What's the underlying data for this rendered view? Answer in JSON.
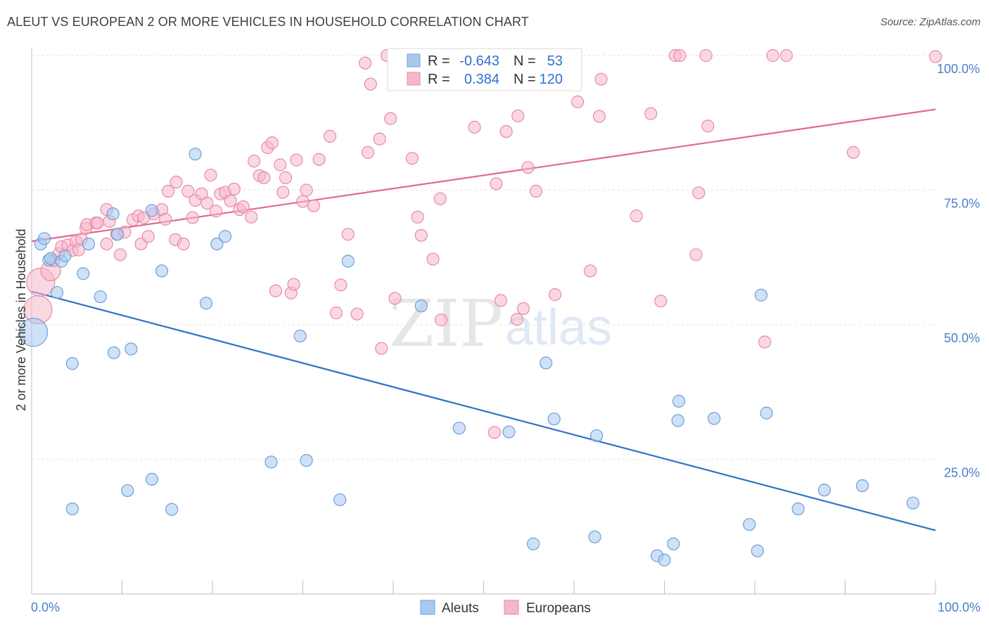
{
  "title": "ALEUT VS EUROPEAN 2 OR MORE VEHICLES IN HOUSEHOLD CORRELATION CHART",
  "source": "Source: ZipAtlas.com",
  "watermark": {
    "part1": "ZIP",
    "part2": "atlas"
  },
  "legend_stats": {
    "rows": [
      {
        "r_label": "R =",
        "r_value": "-0.643",
        "n_label": "N =",
        "n_value": "53"
      },
      {
        "r_label": "R =",
        "r_value": "0.384",
        "n_label": "N =",
        "n_value": "120"
      }
    ]
  },
  "bottom_legend": [
    "Aleuts",
    "Europeans"
  ],
  "colors": {
    "aleut_fill": "#a8c8f0",
    "aleut_stroke": "#6f9fd8",
    "aleut_line": "#2f72c8",
    "euro_fill": "#f5b8ca",
    "euro_stroke": "#e88aa6",
    "euro_line": "#e06a92",
    "tick_text": "#4a7fc8",
    "value_text": "#2f6fd0"
  },
  "chart_data": {
    "type": "scatter",
    "title": "ALEUT VS EUROPEAN 2 OR MORE VEHICLES IN HOUSEHOLD CORRELATION CHART",
    "xlabel": "",
    "ylabel": "2 or more Vehicles in Household",
    "xlim": [
      0,
      100
    ],
    "ylim": [
      0,
      100
    ],
    "x_tick_labels": [
      "0.0%",
      "100.0%"
    ],
    "y_tick_labels": [
      "25.0%",
      "50.0%",
      "75.0%",
      "100.0%"
    ],
    "y_ticks": [
      25,
      50,
      75,
      100
    ],
    "grid": "horizontal dashed",
    "legend_position": "top-center",
    "series": [
      {
        "name": "Aleuts",
        "r": -0.643,
        "n": 53,
        "trend": {
          "x": [
            0,
            100
          ],
          "y": [
            56.2,
            11.8
          ]
        },
        "points": [
          [
            0.2,
            48.6,
            3
          ],
          [
            1,
            65,
            1
          ],
          [
            1.4,
            66,
            1
          ],
          [
            1.9,
            62,
            1
          ],
          [
            2.1,
            62.3,
            1
          ],
          [
            2.8,
            56,
            1
          ],
          [
            3.3,
            61.8,
            1
          ],
          [
            3.7,
            62.8,
            1
          ],
          [
            4.5,
            42.8,
            1
          ],
          [
            4.5,
            15.8,
            1
          ],
          [
            5.7,
            59.5,
            1
          ],
          [
            6.3,
            65,
            1
          ],
          [
            7.6,
            55.2,
            1
          ],
          [
            9,
            70.6,
            1
          ],
          [
            9.1,
            44.8,
            1
          ],
          [
            9.5,
            66.8,
            1
          ],
          [
            10.6,
            19.2,
            1
          ],
          [
            11,
            45.5,
            1
          ],
          [
            13.3,
            71.2,
            1
          ],
          [
            13.3,
            21.3,
            1
          ],
          [
            14.4,
            60,
            1
          ],
          [
            15.5,
            15.7,
            1
          ],
          [
            18.1,
            81.7,
            1
          ],
          [
            19.3,
            54,
            1
          ],
          [
            20.5,
            65,
            1
          ],
          [
            21.4,
            66.4,
            1
          ],
          [
            26.5,
            24.5,
            1
          ],
          [
            29.7,
            47.9,
            1
          ],
          [
            30.4,
            24.8,
            1
          ],
          [
            34.1,
            17.5,
            1
          ],
          [
            35,
            61.8,
            1
          ],
          [
            43.1,
            53.5,
            1
          ],
          [
            47.3,
            30.8,
            1
          ],
          [
            52.8,
            30.1,
            1
          ],
          [
            55.5,
            9.3,
            1
          ],
          [
            56.9,
            42.9,
            1
          ],
          [
            57.8,
            32.5,
            1
          ],
          [
            62.3,
            10.6,
            1
          ],
          [
            62.5,
            29.4,
            1
          ],
          [
            69.2,
            7.1,
            1
          ],
          [
            70,
            6.3,
            1
          ],
          [
            71,
            9.3,
            1
          ],
          [
            71.5,
            32.2,
            1
          ],
          [
            71.6,
            35.8,
            1
          ],
          [
            75.5,
            32.6,
            1
          ],
          [
            79.4,
            12.9,
            1
          ],
          [
            80.3,
            8,
            1
          ],
          [
            80.7,
            55.5,
            1
          ],
          [
            81.3,
            33.6,
            1
          ],
          [
            84.8,
            15.8,
            1
          ],
          [
            87.7,
            19.3,
            1
          ],
          [
            91.9,
            20.1,
            1
          ],
          [
            97.5,
            16.9,
            1
          ]
        ]
      },
      {
        "name": "Europeans",
        "r": 0.384,
        "n": 120,
        "trend": {
          "x": [
            0,
            100
          ],
          "y": [
            65.5,
            90
          ]
        },
        "points": [
          [
            0.7,
            52.8,
            3
          ],
          [
            1,
            57.9,
            3
          ],
          [
            2.1,
            60,
            2
          ],
          [
            2.4,
            61.9,
            1
          ],
          [
            3,
            63.2,
            1
          ],
          [
            3.3,
            64.5,
            1
          ],
          [
            4,
            64.8,
            1
          ],
          [
            4.5,
            63.8,
            1
          ],
          [
            4.9,
            65.5,
            1
          ],
          [
            5.2,
            63.9,
            1
          ],
          [
            5.5,
            65.9,
            1
          ],
          [
            6,
            67.9,
            1
          ],
          [
            6.1,
            68.6,
            1
          ],
          [
            7.1,
            68.9,
            1
          ],
          [
            7.3,
            68.9,
            1
          ],
          [
            8.3,
            71.4,
            1
          ],
          [
            8.3,
            65,
            1
          ],
          [
            8.6,
            69.2,
            1
          ],
          [
            9.4,
            66.8,
            1
          ],
          [
            9.8,
            63,
            1
          ],
          [
            10.3,
            67.2,
            1
          ],
          [
            11.2,
            69.5,
            1
          ],
          [
            11.8,
            70.2,
            1
          ],
          [
            12.1,
            65,
            1
          ],
          [
            12.4,
            69.9,
            1
          ],
          [
            12.9,
            66.4,
            1
          ],
          [
            13.5,
            70.6,
            1
          ],
          [
            14.4,
            71.4,
            1
          ],
          [
            14.8,
            69.6,
            1
          ],
          [
            15.1,
            74.8,
            1
          ],
          [
            15.9,
            65.8,
            1
          ],
          [
            16,
            76.5,
            1
          ],
          [
            16.8,
            65,
            1
          ],
          [
            17.3,
            74.8,
            1
          ],
          [
            17.8,
            69.9,
            1
          ],
          [
            18.1,
            73.1,
            1
          ],
          [
            18.8,
            74.3,
            1
          ],
          [
            19.4,
            72.6,
            1
          ],
          [
            19.8,
            77.8,
            1
          ],
          [
            20.4,
            71.1,
            1
          ],
          [
            20.9,
            74.3,
            1
          ],
          [
            21.4,
            74.6,
            1
          ],
          [
            22,
            73,
            1
          ],
          [
            22.4,
            75.2,
            1
          ],
          [
            23,
            71.4,
            1
          ],
          [
            23.4,
            71.9,
            1
          ],
          [
            24.3,
            70,
            1
          ],
          [
            24.6,
            80.4,
            1
          ],
          [
            25.2,
            77.7,
            1
          ],
          [
            25.7,
            77.3,
            1
          ],
          [
            26.1,
            82.9,
            1
          ],
          [
            26.6,
            83.8,
            1
          ],
          [
            27,
            56.3,
            1
          ],
          [
            27.5,
            79.7,
            1
          ],
          [
            27.8,
            74.6,
            1
          ],
          [
            28.1,
            77.3,
            1
          ],
          [
            28.7,
            55.9,
            1
          ],
          [
            29,
            57.5,
            1
          ],
          [
            29.3,
            80.6,
            1
          ],
          [
            30,
            72.9,
            1
          ],
          [
            30.4,
            75,
            1
          ],
          [
            31.2,
            72.1,
            1
          ],
          [
            31.8,
            80.7,
            1
          ],
          [
            33,
            85,
            1
          ],
          [
            33.7,
            52.2,
            1
          ],
          [
            34.2,
            57.4,
            1
          ],
          [
            35,
            66.8,
            1
          ],
          [
            36,
            52,
            1
          ],
          [
            36.9,
            98.6,
            1
          ],
          [
            37.2,
            82,
            1
          ],
          [
            37.5,
            94.7,
            1
          ],
          [
            38.5,
            84.5,
            1
          ],
          [
            38.7,
            45.6,
            1
          ],
          [
            39.3,
            100,
            1
          ],
          [
            39.7,
            88.3,
            1
          ],
          [
            40.2,
            54.9,
            1
          ],
          [
            41.4,
            100,
            1
          ],
          [
            41.8,
            99.8,
            1
          ],
          [
            42.1,
            80.9,
            1
          ],
          [
            42.7,
            70,
            1
          ],
          [
            43.1,
            66.6,
            1
          ],
          [
            44.4,
            62.2,
            1
          ],
          [
            44.6,
            99.8,
            1
          ],
          [
            45.2,
            73.4,
            1
          ],
          [
            45.3,
            50.9,
            1
          ],
          [
            47.6,
            99.9,
            1
          ],
          [
            48.2,
            100,
            1
          ],
          [
            49,
            86.7,
            1
          ],
          [
            50.7,
            99.6,
            1
          ],
          [
            51.2,
            30,
            1
          ],
          [
            51.4,
            76.2,
            1
          ],
          [
            51.9,
            54.5,
            1
          ],
          [
            52.5,
            85.9,
            1
          ],
          [
            53.5,
            97.7,
            1
          ],
          [
            53.7,
            51,
            1
          ],
          [
            53.8,
            88.8,
            1
          ],
          [
            54.4,
            53,
            1
          ],
          [
            54.9,
            79.2,
            1
          ],
          [
            55.8,
            74.8,
            1
          ],
          [
            57.9,
            55.6,
            1
          ],
          [
            59.4,
            99.9,
            1
          ],
          [
            60.4,
            91.4,
            1
          ],
          [
            61.8,
            60,
            1
          ],
          [
            62.8,
            88.7,
            1
          ],
          [
            63,
            95.6,
            1
          ],
          [
            66.9,
            70.2,
            1
          ],
          [
            68.5,
            89.2,
            1
          ],
          [
            69.6,
            54.4,
            1
          ],
          [
            71.2,
            100,
            1
          ],
          [
            71.7,
            100,
            1
          ],
          [
            73.5,
            63,
            1
          ],
          [
            73.8,
            74.5,
            1
          ],
          [
            74.6,
            100,
            1
          ],
          [
            74.8,
            86.9,
            1
          ],
          [
            81.1,
            46.8,
            1
          ],
          [
            82,
            100,
            1
          ],
          [
            83.5,
            100,
            1
          ],
          [
            90.9,
            82,
            1
          ],
          [
            100,
            99.8,
            1
          ]
        ]
      }
    ]
  }
}
